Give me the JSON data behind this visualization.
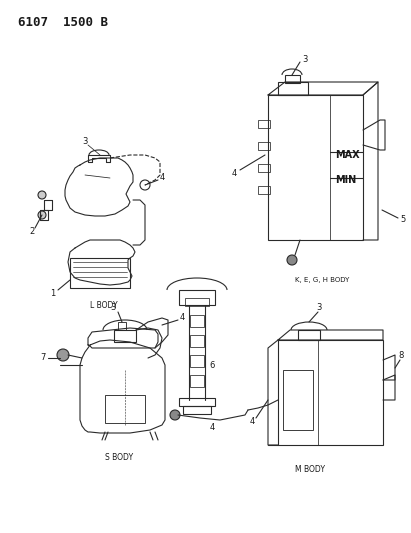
{
  "background_color": "#ffffff",
  "line_color": "#2a2a2a",
  "figsize": [
    4.11,
    5.33
  ],
  "dpi": 100,
  "title": "6107  1500 B",
  "label_l_body": "L BODY",
  "label_s_body": "S BODY",
  "label_m_body": "M BODY",
  "label_k_body": "K, E, G, H BODY"
}
